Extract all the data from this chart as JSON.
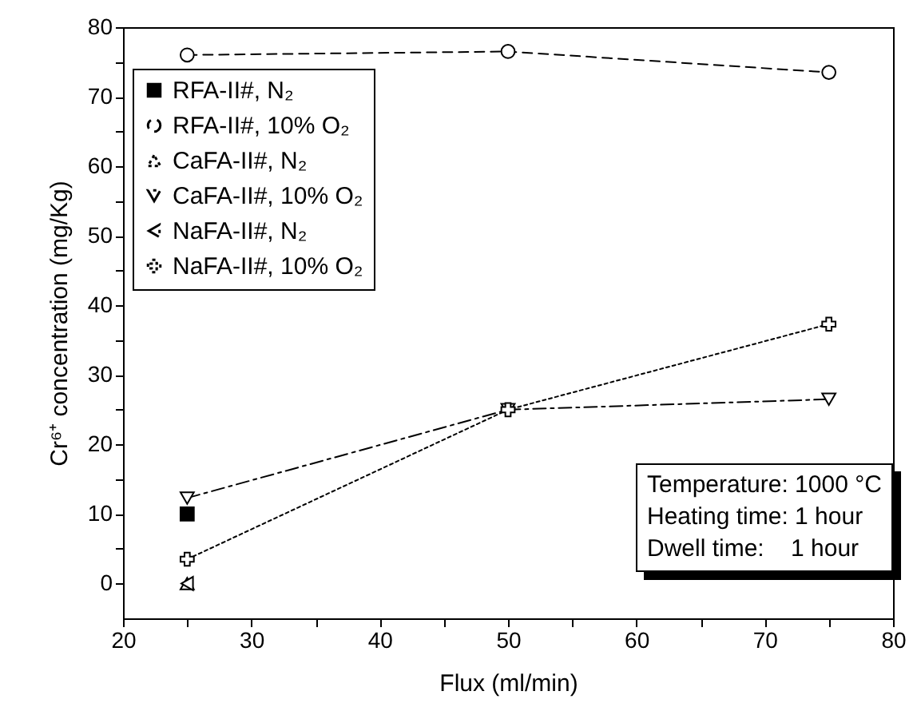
{
  "chart_data": {
    "type": "line",
    "xlabel": "Flux (ml/min)",
    "ylabel": "Cr⁶⁺ concentration (mg/Kg)",
    "x": [
      25,
      50,
      75
    ],
    "series": [
      {
        "name": "RFA-II#, N₂",
        "color": "#000000",
        "values": [
          10,
          null,
          null
        ],
        "marker": "square",
        "line_style": "solid"
      },
      {
        "name": "RFA-II#, 10% O₂",
        "color": "#000000",
        "values": [
          76,
          76.5,
          73.5
        ],
        "marker": "circle",
        "line_style": "dashed"
      },
      {
        "name": "CaFA-II#, N₂",
        "color": "#000000",
        "values": [
          0,
          null,
          null
        ],
        "marker": "triangle",
        "line_style": "dotted"
      },
      {
        "name": "CaFA-II#, 10% O₂",
        "color": "#000000",
        "values": [
          12.3,
          25,
          26.5
        ],
        "marker": "triangle-down",
        "line_style": "dashdot"
      },
      {
        "name": "NaFA-II#, N₂",
        "color": "#000000",
        "values": [
          0,
          null,
          null
        ],
        "marker": "triangle-left",
        "line_style": "dashdot"
      },
      {
        "name": "NaFA-II#, 10% O₂",
        "color": "#000000",
        "values": [
          3.5,
          25,
          37.3
        ],
        "marker": "cross",
        "line_style": "dotted"
      }
    ],
    "xlim": [
      20,
      80
    ],
    "xticks": [
      20,
      {
        "value": 25,
        "label": null
      },
      30,
      {
        "value": 35,
        "label": null
      },
      40,
      {
        "value": 45,
        "label": null
      },
      50,
      {
        "value": 55,
        "label": null
      },
      60,
      {
        "value": 65,
        "label": null
      },
      70,
      {
        "value": 75,
        "label": null
      },
      80
    ],
    "ylim": [
      -5,
      80
    ],
    "yticks": [
      0,
      {
        "value": 5,
        "label": null
      },
      10,
      {
        "value": 15,
        "label": null
      },
      20,
      {
        "value": 25,
        "label": null
      },
      30,
      {
        "value": 35,
        "label": null
      },
      40,
      {
        "value": 45,
        "label": null
      },
      50,
      {
        "value": 55,
        "label": null
      },
      60,
      {
        "value": 65,
        "label": null
      },
      70,
      {
        "value": 75,
        "label": null
      },
      80
    ],
    "grid": false,
    "legend": "top left",
    "annotations": [
      "Temperature: 1000 °C",
      "Heating time: 1 hour",
      "Dwell time:    1 hour"
    ]
  }
}
